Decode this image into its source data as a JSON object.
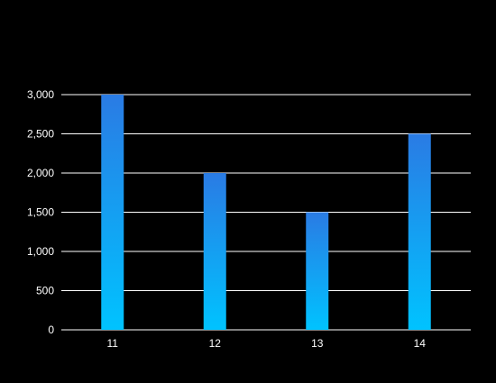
{
  "chart_data": {
    "type": "bar",
    "categories": [
      "11",
      "12",
      "13",
      "14"
    ],
    "series": [
      {
        "values": [
          3000,
          2000,
          1500,
          2500
        ]
      }
    ],
    "title": "",
    "xlabel": "",
    "ylabel": "",
    "ylim": [
      0,
      3000
    ],
    "yticks": [
      0,
      500,
      1000,
      1500,
      2000,
      2500,
      3000
    ],
    "ytick_labels": [
      "0",
      "500",
      "1,000",
      "1,500",
      "2,000",
      "2,500",
      "3,000"
    ],
    "grid": true,
    "legend": "none",
    "colors": {
      "background": "#000000",
      "bar_top": "#2a7be4",
      "bar_bottom": "#00c3ff",
      "grid": "#ffffff",
      "text": "#ffffff"
    }
  }
}
